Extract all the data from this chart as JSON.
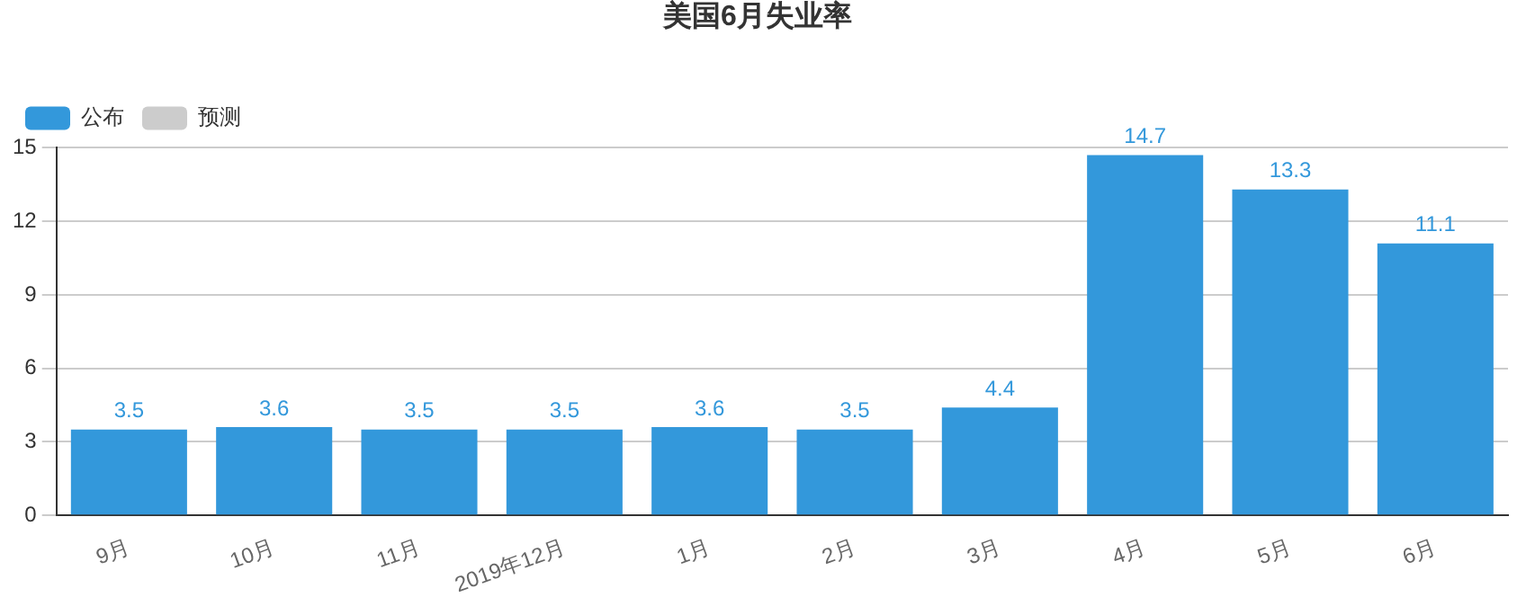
{
  "chart_data": {
    "type": "bar",
    "title": "美国6月失业率",
    "categories": [
      "9月",
      "10月",
      "11月",
      "2019年12月",
      "1月",
      "2月",
      "3月",
      "4月",
      "5月",
      "6月"
    ],
    "series": [
      {
        "name": "公布",
        "color": "#3398db",
        "values": [
          3.5,
          3.6,
          3.5,
          3.5,
          3.6,
          3.5,
          4.4,
          14.7,
          13.3,
          11.1
        ]
      },
      {
        "name": "预测",
        "color": "#cccccc",
        "values": [
          null,
          null,
          null,
          null,
          null,
          null,
          null,
          null,
          null,
          null
        ]
      }
    ],
    "ylim": [
      0,
      15
    ],
    "yticks": [
      0,
      3,
      6,
      9,
      12,
      15
    ],
    "grid": "y",
    "legend": "top left",
    "data_labels": true
  }
}
